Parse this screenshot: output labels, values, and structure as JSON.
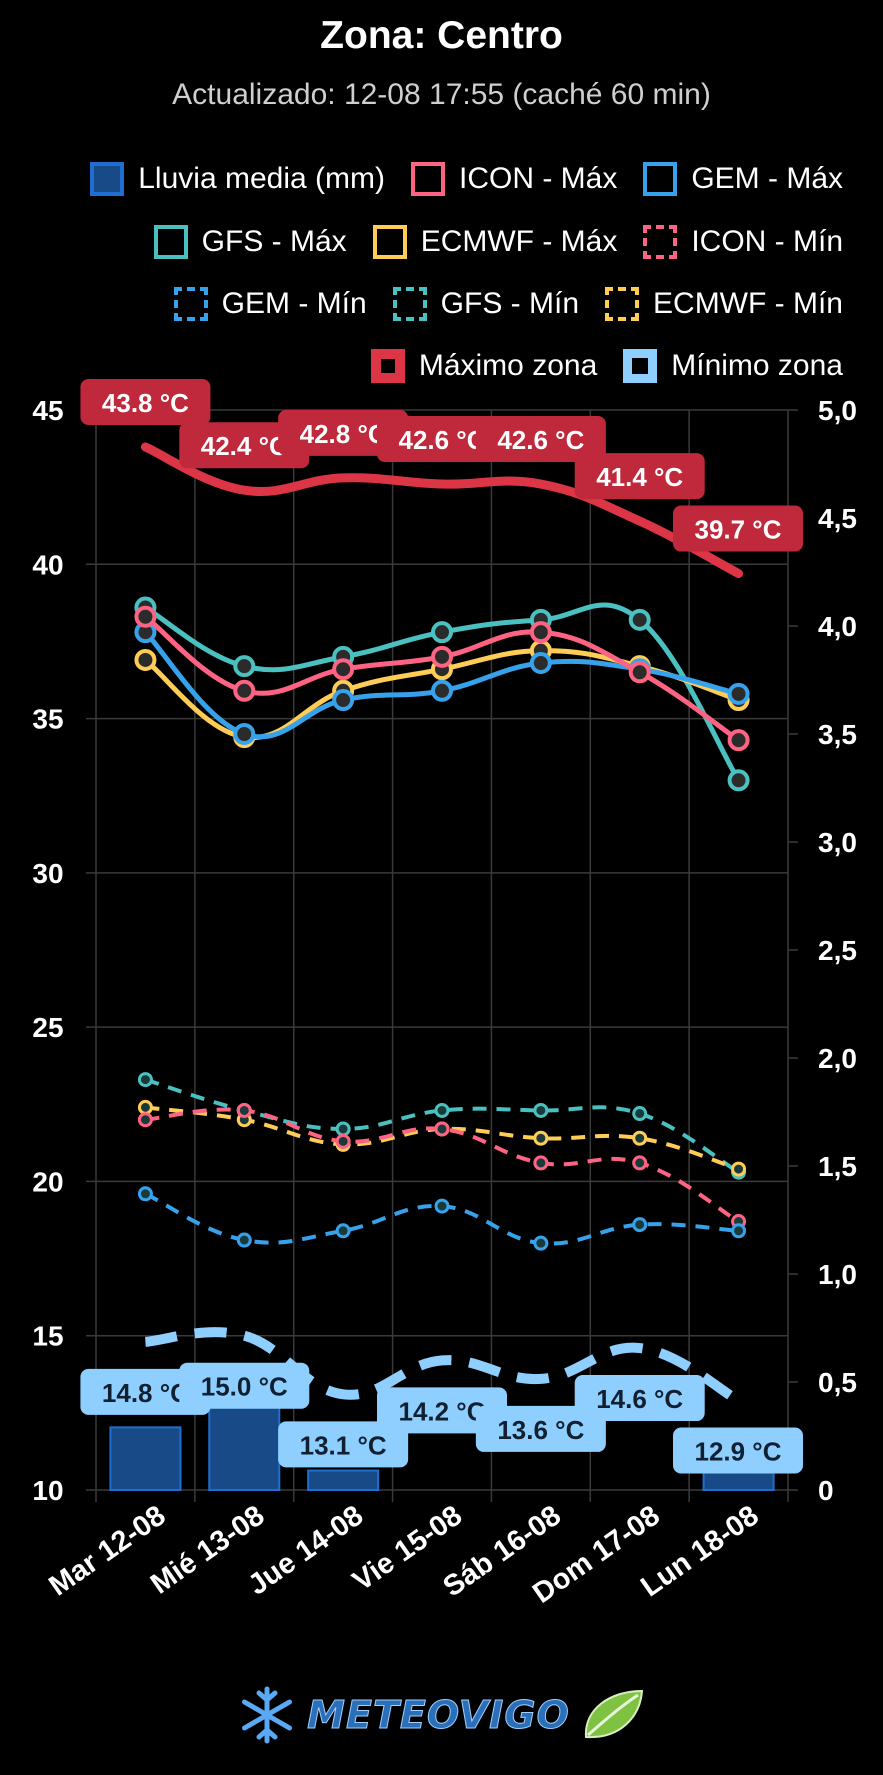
{
  "header": {
    "title": "Zona: Centro",
    "subtitle": "Actualizado: 12-08 17:55 (caché 60 min)"
  },
  "legend": [
    {
      "label": "Lluvia media (mm)",
      "color": "#1f6fd1",
      "fill": "#174a86",
      "style": "box"
    },
    {
      "label": "ICON - Máx",
      "color": "#ff6384",
      "style": "box"
    },
    {
      "label": "GEM - Máx",
      "color": "#36a2eb",
      "style": "box"
    },
    {
      "label": "GFS - Máx",
      "color": "#4bc0c0",
      "style": "box"
    },
    {
      "label": "ECMWF - Máx",
      "color": "#ffcd56",
      "style": "box"
    },
    {
      "label": "ICON - Mín",
      "color": "#ff6384",
      "style": "dashed"
    },
    {
      "label": "GEM - Mín",
      "color": "#36a2eb",
      "style": "dashed"
    },
    {
      "label": "GFS - Mín",
      "color": "#4bc0c0",
      "style": "dashed"
    },
    {
      "label": "ECMWF - Mín",
      "color": "#ffcd56",
      "style": "dashed"
    },
    {
      "label": "Máximo zona",
      "color": "#dc3545",
      "style": "thick"
    },
    {
      "label": "Mínimo zona",
      "color": "#8ecfff",
      "style": "thickdashed"
    }
  ],
  "chart_data": {
    "type": "line",
    "categories": [
      "Mar 12-08",
      "Mié 13-08",
      "Jue 14-08",
      "Vie 15-08",
      "Sáb 16-08",
      "Dom 17-08",
      "Lun 18-08"
    ],
    "y_left": {
      "min": 10,
      "max": 45,
      "ticks": [
        "10",
        "15",
        "20",
        "25",
        "30",
        "35",
        "40",
        "45"
      ]
    },
    "y_right": {
      "min": 0,
      "max": 5,
      "ticks": [
        "0",
        "0,5",
        "1,0",
        "1,5",
        "2,0",
        "2,5",
        "3,0",
        "3,5",
        "4,0",
        "4,5",
        "5,0"
      ]
    },
    "rain": {
      "name": "Lluvia media (mm)",
      "values": [
        0.29,
        0.45,
        0.09,
        0,
        0,
        0,
        0.09
      ],
      "color": "#1f6fd1",
      "fill": "#174a86"
    },
    "series": [
      {
        "name": "GFS - Máx",
        "color": "#4bc0c0",
        "dashed": false,
        "values": [
          38.6,
          36.7,
          37.0,
          37.8,
          38.2,
          38.2,
          33.0
        ]
      },
      {
        "name": "ECMWF - Máx",
        "color": "#ffcd56",
        "dashed": false,
        "values": [
          36.9,
          34.4,
          35.9,
          36.6,
          37.2,
          36.7,
          35.6
        ]
      },
      {
        "name": "GEM - Máx",
        "color": "#36a2eb",
        "dashed": false,
        "values": [
          37.8,
          34.5,
          35.6,
          35.9,
          36.8,
          36.6,
          35.8
        ]
      },
      {
        "name": "ICON - Máx",
        "color": "#ff6384",
        "dashed": false,
        "values": [
          38.3,
          35.9,
          36.6,
          37.0,
          37.8,
          36.5,
          34.3
        ]
      },
      {
        "name": "GFS - Mín",
        "color": "#4bc0c0",
        "dashed": true,
        "values": [
          23.3,
          22.3,
          21.7,
          22.3,
          22.3,
          22.2,
          20.3
        ]
      },
      {
        "name": "ECMWF - Mín",
        "color": "#ffcd56",
        "dashed": true,
        "values": [
          22.4,
          22.0,
          21.2,
          21.7,
          21.4,
          21.4,
          20.4
        ]
      },
      {
        "name": "ICON - Mín",
        "color": "#ff6384",
        "dashed": true,
        "values": [
          22.0,
          22.3,
          21.3,
          21.7,
          20.6,
          20.6,
          18.7
        ]
      },
      {
        "name": "GEM - Mín",
        "color": "#36a2eb",
        "dashed": true,
        "values": [
          19.6,
          18.1,
          18.4,
          19.2,
          18.0,
          18.6,
          18.4
        ]
      }
    ],
    "zone_max": {
      "name": "Máximo zona",
      "color": "#dc3545",
      "values": [
        43.8,
        42.4,
        42.8,
        42.6,
        42.6,
        41.4,
        39.7
      ],
      "labels": [
        "43.8 °C",
        "42.4 °C",
        "42.8 °C",
        "42.6 °C",
        "42.6 °C",
        "41.4 °C",
        "39.7 °C"
      ]
    },
    "zone_min": {
      "name": "Mínimo zona",
      "color": "#8ecfff",
      "values": [
        14.8,
        15.0,
        13.1,
        14.2,
        13.6,
        14.6,
        12.9
      ],
      "labels": [
        "14.8 °C",
        "15.0 °C",
        "13.1 °C",
        "14.2 °C",
        "13.6 °C",
        "14.6 °C",
        "12.9 °C"
      ]
    }
  },
  "footer": {
    "logo_text": "METEOVIGO"
  }
}
